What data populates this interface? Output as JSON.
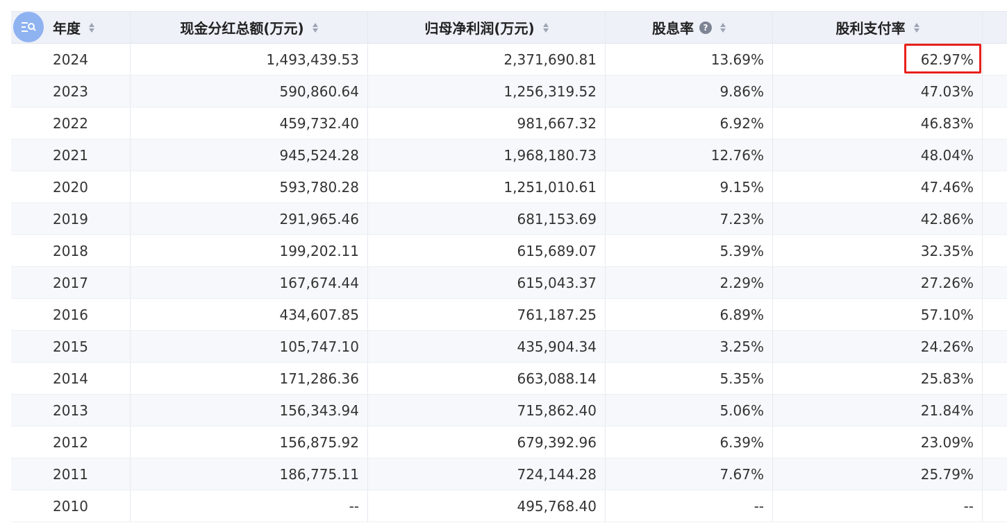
{
  "table": {
    "headers": {
      "year": "年度",
      "cash_dividend_total": "现金分红总额(万元)",
      "net_profit_parent": "归母净利润(万元)",
      "dividend_yield": "股息率",
      "payout_ratio": "股利支付率"
    },
    "rows": [
      {
        "year": "2024",
        "cash": "1,493,439.53",
        "profit": "2,371,690.81",
        "yield": "13.69%",
        "payout": "62.97%"
      },
      {
        "year": "2023",
        "cash": "590,860.64",
        "profit": "1,256,319.52",
        "yield": "9.86%",
        "payout": "47.03%"
      },
      {
        "year": "2022",
        "cash": "459,732.40",
        "profit": "981,667.32",
        "yield": "6.92%",
        "payout": "46.83%"
      },
      {
        "year": "2021",
        "cash": "945,524.28",
        "profit": "1,968,180.73",
        "yield": "12.76%",
        "payout": "48.04%"
      },
      {
        "year": "2020",
        "cash": "593,780.28",
        "profit": "1,251,010.61",
        "yield": "9.15%",
        "payout": "47.46%"
      },
      {
        "year": "2019",
        "cash": "291,965.46",
        "profit": "681,153.69",
        "yield": "7.23%",
        "payout": "42.86%"
      },
      {
        "year": "2018",
        "cash": "199,202.11",
        "profit": "615,689.07",
        "yield": "5.39%",
        "payout": "32.35%"
      },
      {
        "year": "2017",
        "cash": "167,674.44",
        "profit": "615,043.37",
        "yield": "2.29%",
        "payout": "27.26%"
      },
      {
        "year": "2016",
        "cash": "434,607.85",
        "profit": "761,187.25",
        "yield": "6.89%",
        "payout": "57.10%"
      },
      {
        "year": "2015",
        "cash": "105,747.10",
        "profit": "435,904.34",
        "yield": "3.25%",
        "payout": "24.26%"
      },
      {
        "year": "2014",
        "cash": "171,286.36",
        "profit": "663,088.14",
        "yield": "5.35%",
        "payout": "25.83%"
      },
      {
        "year": "2013",
        "cash": "156,343.94",
        "profit": "715,862.40",
        "yield": "5.06%",
        "payout": "21.84%"
      },
      {
        "year": "2012",
        "cash": "156,875.92",
        "profit": "679,392.96",
        "yield": "6.39%",
        "payout": "23.09%"
      },
      {
        "year": "2011",
        "cash": "186,775.11",
        "profit": "724,144.28",
        "yield": "7.67%",
        "payout": "25.79%"
      },
      {
        "year": "2010",
        "cash": "--",
        "profit": "495,768.40",
        "yield": "--",
        "payout": "--"
      }
    ]
  },
  "highlighted_cell": "2024 股利支付率 62.97%",
  "colors": {
    "header_bg": "#eef1f8",
    "row_alt_bg": "#f7f8fb",
    "highlight_border": "#e6211b",
    "fab_bg": "#8fb2f1"
  },
  "icons": {
    "fab": "list-search-icon",
    "sort": "sort-caret-icon",
    "help": "question-circle-icon"
  }
}
